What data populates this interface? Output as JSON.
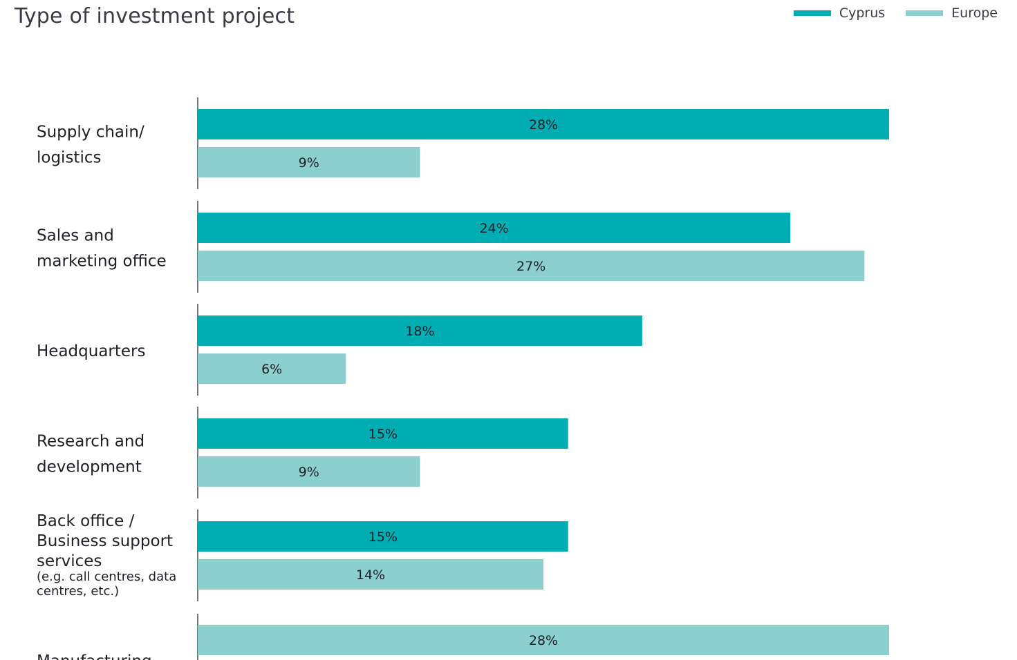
{
  "chart_data": {
    "type": "bar",
    "orientation": "horizontal",
    "title": "Type of investment project",
    "legend": {
      "placement": "top-right",
      "entries": [
        "Cyprus",
        "Europe"
      ]
    },
    "colors": {
      "Cyprus": "#00adb2",
      "Europe": "#8ccfcf",
      "axis": "#4a4a4a"
    },
    "categories": [
      {
        "lines": [
          "Supply chain/",
          "logistics"
        ],
        "note": []
      },
      {
        "lines": [
          "Sales and",
          "marketing office"
        ],
        "note": []
      },
      {
        "lines": [
          "Headquarters"
        ],
        "note": []
      },
      {
        "lines": [
          "Research and",
          "development"
        ],
        "note": []
      },
      {
        "lines": [
          "Back office /",
          "Business support",
          "services"
        ],
        "note": [
          "(e.g. call centres, data",
          "centres, etc.)"
        ]
      },
      {
        "lines": [
          "Manufacturing"
        ],
        "note": []
      }
    ],
    "series": [
      {
        "name": "Cyprus",
        "values": [
          28,
          24,
          18,
          15,
          15,
          null
        ]
      },
      {
        "name": "Europe",
        "values": [
          9,
          27,
          6,
          9,
          14,
          28
        ]
      }
    ],
    "value_format": "{v}%",
    "xlim": [
      0,
      28
    ]
  }
}
